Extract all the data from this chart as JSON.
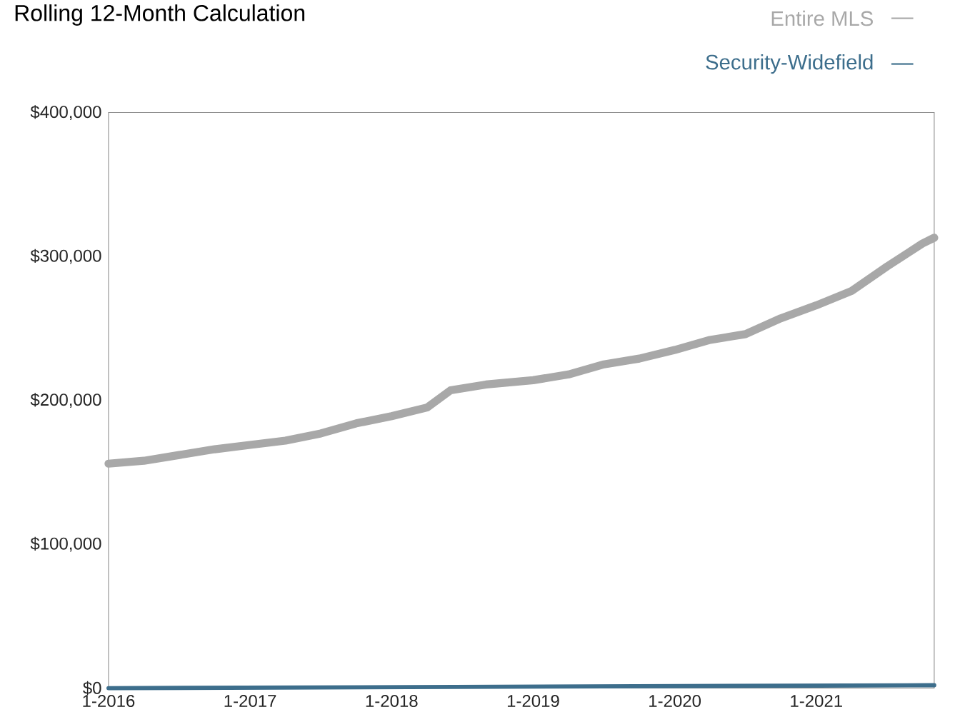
{
  "chart_data": {
    "type": "line",
    "title": "Rolling 12-Month Calculation",
    "x": [
      "2016-01",
      "2016-04",
      "2016-07",
      "2016-10",
      "2017-01",
      "2017-04",
      "2017-07",
      "2017-10",
      "2018-01",
      "2018-04",
      "2018-06",
      "2018-09",
      "2019-01",
      "2019-04",
      "2019-07",
      "2019-10",
      "2020-01",
      "2020-04",
      "2020-07",
      "2020-10",
      "2021-01",
      "2021-04",
      "2021-07",
      "2021-10",
      "2021-11"
    ],
    "series": [
      {
        "name": "Entire MLS",
        "color": "#a8a8a8",
        "values": [
          156000,
          158000,
          162000,
          166000,
          169000,
          172000,
          177000,
          184000,
          189000,
          195000,
          207000,
          211000,
          214000,
          218000,
          225000,
          229000,
          235000,
          242000,
          246000,
          257000,
          266000,
          276000,
          293000,
          309000,
          313000
        ]
      },
      {
        "name": "Security-Widefield",
        "color": "#3d6e8c",
        "x": [
          "2016-01",
          "2021-11"
        ],
        "values": [
          0,
          2000
        ]
      }
    ],
    "xlim": [
      "2016-01",
      "2021-11"
    ],
    "xticks": [
      {
        "value": "2016-01",
        "label": "1-2016"
      },
      {
        "value": "2017-01",
        "label": "1-2017"
      },
      {
        "value": "2018-01",
        "label": "1-2018"
      },
      {
        "value": "2019-01",
        "label": "1-2019"
      },
      {
        "value": "2020-01",
        "label": "1-2020"
      },
      {
        "value": "2021-01",
        "label": "1-2021"
      }
    ],
    "ylim": [
      0,
      400000
    ],
    "yticks": [
      {
        "value": 0,
        "label": "$0"
      },
      {
        "value": 100000,
        "label": "$100,000"
      },
      {
        "value": 200000,
        "label": "$200,000"
      },
      {
        "value": 300000,
        "label": "$300,000"
      },
      {
        "value": 400000,
        "label": "$400,000"
      }
    ],
    "grid": false,
    "legend": "top right",
    "marker": "none",
    "line_style": "solid"
  }
}
